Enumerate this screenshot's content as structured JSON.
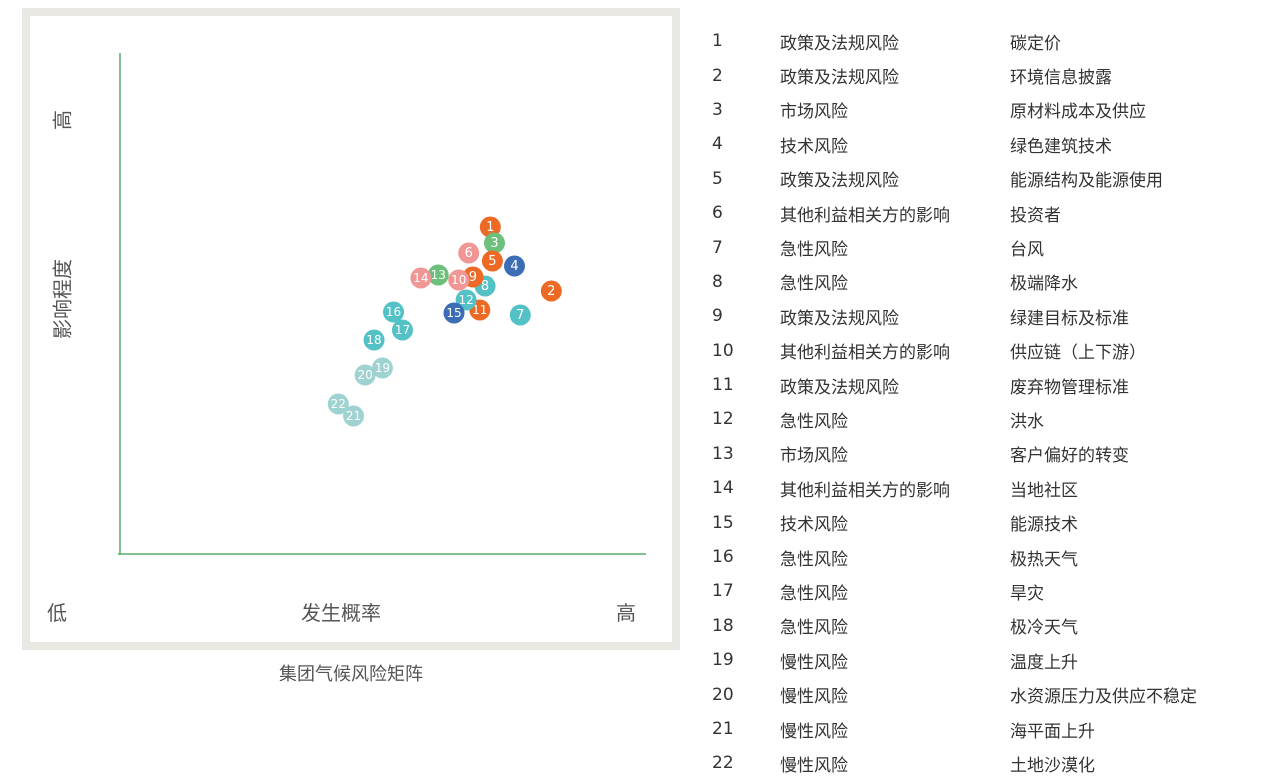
{
  "chart_data": {
    "type": "scatter",
    "title": "",
    "caption": "集团气候风险矩阵",
    "xlabel": "发生概率",
    "ylabel": "影响程度",
    "x_low_label": "低",
    "x_high_label": "高",
    "y_high_label": "高",
    "xlim": [
      0,
      100
    ],
    "ylim": [
      0,
      100
    ],
    "grid": false,
    "points": [
      {
        "label": "1",
        "x": 70.4,
        "y": 65.4,
        "color": "#ee6a24"
      },
      {
        "label": "2",
        "x": 82.0,
        "y": 52.6,
        "color": "#ee6a24"
      },
      {
        "label": "3",
        "x": 71.2,
        "y": 62.2,
        "color": "#6dbf7c"
      },
      {
        "label": "4",
        "x": 75.0,
        "y": 57.6,
        "color": "#3d6eb5"
      },
      {
        "label": "5",
        "x": 70.8,
        "y": 58.6,
        "color": "#ee6a24"
      },
      {
        "label": "6",
        "x": 66.3,
        "y": 60.2,
        "color": "#f09795"
      },
      {
        "label": "7",
        "x": 76.1,
        "y": 47.8,
        "color": "#53c1c6"
      },
      {
        "label": "8",
        "x": 69.4,
        "y": 53.6,
        "color": "#53c1c6"
      },
      {
        "label": "9",
        "x": 67.1,
        "y": 55.4,
        "color": "#ee6a24"
      },
      {
        "label": "10",
        "x": 64.4,
        "y": 54.8,
        "color": "#f09795"
      },
      {
        "label": "11",
        "x": 68.4,
        "y": 48.8,
        "color": "#ee6a24"
      },
      {
        "label": "12",
        "x": 65.8,
        "y": 50.8,
        "color": "#53c1c6"
      },
      {
        "label": "13",
        "x": 60.5,
        "y": 55.8,
        "color": "#6dbf7c"
      },
      {
        "label": "14",
        "x": 57.2,
        "y": 55.2,
        "color": "#f09795"
      },
      {
        "label": "15",
        "x": 63.5,
        "y": 48.2,
        "color": "#3d6eb5"
      },
      {
        "label": "16",
        "x": 52.0,
        "y": 48.4,
        "color": "#53c1c6"
      },
      {
        "label": "17",
        "x": 53.7,
        "y": 44.8,
        "color": "#53c1c6"
      },
      {
        "label": "18",
        "x": 48.3,
        "y": 42.8,
        "color": "#53c1c6"
      },
      {
        "label": "19",
        "x": 49.9,
        "y": 37.2,
        "color": "#9fd3d2"
      },
      {
        "label": "20",
        "x": 46.6,
        "y": 35.8,
        "color": "#9fd3d2"
      },
      {
        "label": "21",
        "x": 44.4,
        "y": 27.6,
        "color": "#9fd3d2"
      },
      {
        "label": "22",
        "x": 41.5,
        "y": 30.0,
        "color": "#9fd3d2"
      }
    ]
  },
  "table": {
    "rows": [
      {
        "no": "1",
        "category": "政策及法规风险",
        "item": "碳定价"
      },
      {
        "no": "2",
        "category": "政策及法规风险",
        "item": "环境信息披露"
      },
      {
        "no": "3",
        "category": "市场风险",
        "item": "原材料成本及供应"
      },
      {
        "no": "4",
        "category": "技术风险",
        "item": "绿色建筑技术"
      },
      {
        "no": "5",
        "category": "政策及法规风险",
        "item": "能源结构及能源使用"
      },
      {
        "no": "6",
        "category": "其他利益相关方的影响",
        "item": "投资者"
      },
      {
        "no": "7",
        "category": "急性风险",
        "item": "台风"
      },
      {
        "no": "8",
        "category": "急性风险",
        "item": "极端降水"
      },
      {
        "no": "9",
        "category": "政策及法规风险",
        "item": "绿建目标及标准"
      },
      {
        "no": "10",
        "category": "其他利益相关方的影响",
        "item": "供应链（上下游）"
      },
      {
        "no": "11",
        "category": "政策及法规风险",
        "item": "废弃物管理标准"
      },
      {
        "no": "12",
        "category": "急性风险",
        "item": "洪水"
      },
      {
        "no": "13",
        "category": "市场风险",
        "item": "客户偏好的转变"
      },
      {
        "no": "14",
        "category": "其他利益相关方的影响",
        "item": "当地社区"
      },
      {
        "no": "15",
        "category": "技术风险",
        "item": "能源技术"
      },
      {
        "no": "16",
        "category": "急性风险",
        "item": "极热天气"
      },
      {
        "no": "17",
        "category": "急性风险",
        "item": "旱灾"
      },
      {
        "no": "18",
        "category": "急性风险",
        "item": "极冷天气"
      },
      {
        "no": "19",
        "category": "慢性风险",
        "item": "温度上升"
      },
      {
        "no": "20",
        "category": "慢性风险",
        "item": "水资源压力及供应不稳定"
      },
      {
        "no": "21",
        "category": "慢性风险",
        "item": "海平面上升"
      },
      {
        "no": "22",
        "category": "慢性风险",
        "item": "土地沙漠化"
      }
    ]
  },
  "colors": {
    "axis": "#5aae6b",
    "frame": "#e9e8e2"
  }
}
